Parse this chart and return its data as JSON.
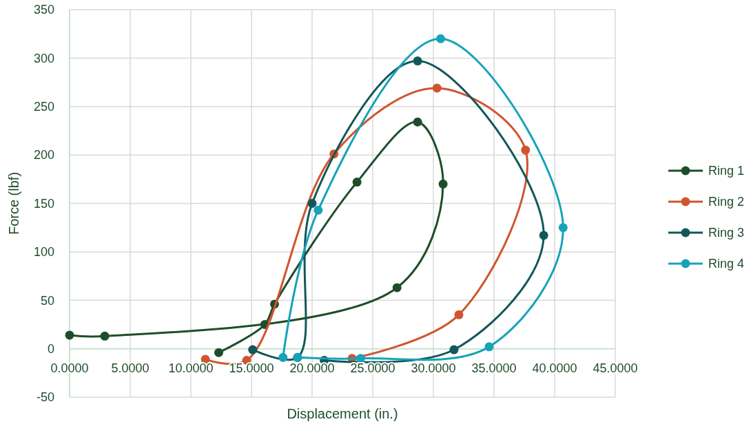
{
  "chart_data": {
    "type": "line",
    "xlabel": "Displacement (in.)",
    "ylabel": "Force (lbf)",
    "xlim": [
      0,
      45
    ],
    "ylim": [
      -50,
      350
    ],
    "xticks": [
      {
        "value": 0,
        "label": "0.0000"
      },
      {
        "value": 5,
        "label": "5.0000"
      },
      {
        "value": 10,
        "label": "10.0000"
      },
      {
        "value": 15,
        "label": "15.0000"
      },
      {
        "value": 20,
        "label": "20.0000"
      },
      {
        "value": 25,
        "label": "25.0000"
      },
      {
        "value": 30,
        "label": "30.0000"
      },
      {
        "value": 35,
        "label": "35.0000"
      },
      {
        "value": 40,
        "label": "40.0000"
      },
      {
        "value": 45,
        "label": "45.0000"
      }
    ],
    "yticks": [
      -50,
      0,
      50,
      100,
      150,
      200,
      250,
      300,
      350
    ],
    "grid": true,
    "legend": "right",
    "marker": "circle",
    "line_style": "solid",
    "series": [
      {
        "name": "Ring 1",
        "color": "#1e4d2b",
        "x": [
          0,
          2.9,
          27,
          30.8,
          28.7,
          23.7,
          16.9,
          16.1,
          12.3
        ],
        "values": [
          14,
          13,
          63,
          170,
          234,
          172,
          46,
          25,
          -4
        ]
      },
      {
        "name": "Ring 2",
        "color": "#d0552e",
        "x": [
          11.2,
          14.6,
          21.8,
          30.3,
          37.6,
          32.1,
          23.3
        ],
        "values": [
          -11,
          -12,
          201,
          269,
          205,
          35,
          -10
        ]
      },
      {
        "name": "Ring 3",
        "color": "#12575a",
        "x": [
          15.1,
          18.8,
          20,
          28.7,
          39.1,
          31.7,
          21
        ],
        "values": [
          -1,
          -9,
          150,
          297,
          117,
          -1,
          -12
        ]
      },
      {
        "name": "Ring 4",
        "color": "#16a3b8",
        "x": [
          17.6,
          20.5,
          30.6,
          40.7,
          34.6,
          24,
          18.8
        ],
        "values": [
          -9,
          143,
          320,
          125,
          2,
          -10,
          -9
        ]
      }
    ]
  }
}
